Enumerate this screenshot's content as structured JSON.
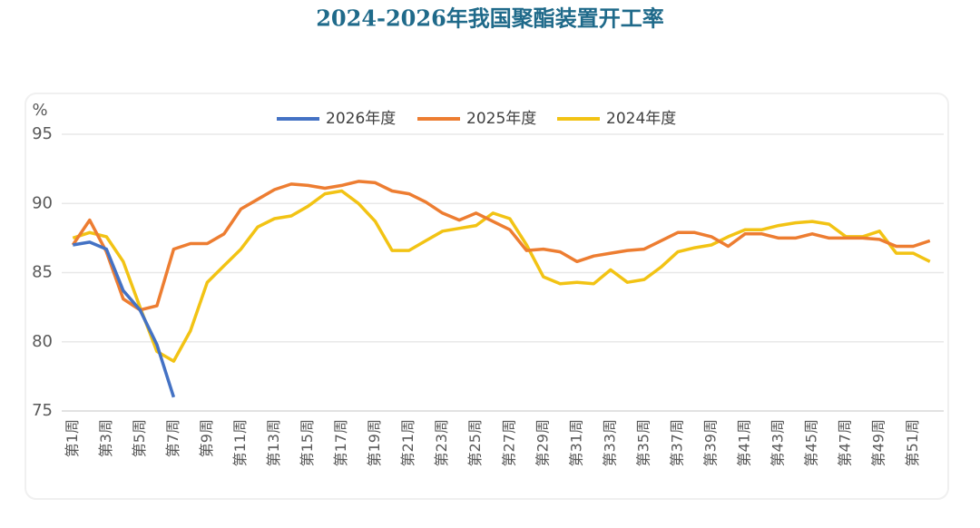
{
  "chart_data": {
    "type": "line",
    "title": "2024-2026年我国聚酯装置开工率",
    "y_label": "%",
    "categories": [
      "第1周",
      null,
      "第3周",
      null,
      "第5周",
      null,
      "第7周",
      null,
      "第9周",
      null,
      "第11周",
      null,
      "第13周",
      null,
      "第15周",
      null,
      "第17周",
      null,
      "第19周",
      null,
      "第21周",
      null,
      "第23周",
      null,
      "第25周",
      null,
      "第27周",
      null,
      "第29周",
      null,
      "第31周",
      null,
      "第33周",
      null,
      "第35周",
      null,
      "第37周",
      null,
      "第39周",
      null,
      "第41周",
      null,
      "第43周",
      null,
      "第45周",
      null,
      "第47周",
      null,
      "第49周",
      null,
      "第51周",
      null
    ],
    "series": [
      {
        "name": "2026年度",
        "color": "#4472c4",
        "values": [
          87.0,
          87.2,
          86.7,
          83.7,
          82.3,
          79.8,
          76.0,
          null,
          null,
          null,
          null,
          null,
          null,
          null,
          null,
          null,
          null,
          null,
          null,
          null,
          null,
          null,
          null,
          null,
          null,
          null,
          null,
          null,
          null,
          null,
          null,
          null,
          null,
          null,
          null,
          null,
          null,
          null,
          null,
          null,
          null,
          null,
          null,
          null,
          null,
          null,
          null,
          null,
          null,
          null,
          null,
          null
        ]
      },
      {
        "name": "2025年度",
        "color": "#ed7d31",
        "values": [
          87.0,
          88.8,
          86.5,
          83.1,
          82.3,
          82.6,
          86.7,
          87.1,
          87.1,
          87.8,
          89.6,
          90.3,
          91.0,
          91.4,
          91.3,
          91.1,
          91.3,
          91.6,
          91.5,
          90.9,
          90.7,
          90.1,
          89.3,
          88.8,
          89.3,
          88.7,
          88.1,
          86.6,
          86.7,
          86.5,
          85.8,
          86.2,
          86.4,
          86.6,
          86.7,
          87.3,
          87.9,
          87.9,
          87.6,
          86.9,
          87.8,
          87.8,
          87.5,
          87.5,
          87.8,
          87.5,
          87.5,
          87.5,
          87.4,
          86.9,
          86.9,
          87.3
        ]
      },
      {
        "name": "2024年度",
        "color": "#f2c314",
        "values": [
          87.5,
          87.9,
          87.6,
          85.8,
          82.5,
          79.3,
          78.6,
          80.8,
          84.3,
          85.5,
          86.7,
          88.3,
          88.9,
          89.1,
          89.8,
          90.7,
          90.9,
          90.0,
          88.7,
          86.6,
          86.6,
          87.3,
          88.0,
          88.2,
          88.4,
          89.3,
          88.9,
          87.0,
          84.7,
          84.2,
          84.3,
          84.2,
          85.2,
          84.3,
          84.5,
          85.4,
          86.5,
          86.8,
          87.0,
          87.6,
          88.1,
          88.1,
          88.4,
          88.6,
          88.7,
          88.5,
          87.6,
          87.6,
          88.0,
          86.4,
          86.4,
          85.8
        ]
      }
    ],
    "ylim": [
      75,
      95
    ],
    "yticks": [
      75,
      80,
      85,
      90,
      95
    ],
    "grid": true,
    "legend": "top"
  }
}
